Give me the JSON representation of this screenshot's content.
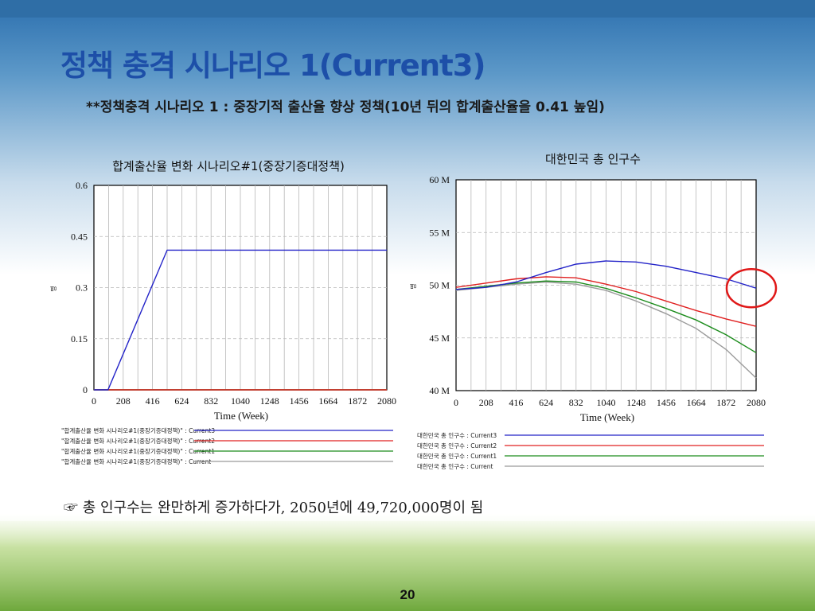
{
  "slide": {
    "title": "정책 충격 시나리오 1(Current3)",
    "subtitle": "**정책충격 시나리오 1 : 중장기적 출산율 향상 정책(10년 뒤의 합계출산율을  0.41 높임)",
    "conclusion": "☞ 총 인구수는 완만하게 증가하다가, 2050년에 49,720,000명이 됨",
    "page_number": "20"
  },
  "colors": {
    "title": "#1d4fa8",
    "current3": "#2323c8",
    "current2": "#e02020",
    "current1": "#1c8c1c",
    "current": "#9a9a9a",
    "highlight": "#e01818"
  },
  "chart_data": [
    {
      "type": "line",
      "title": "합계출산율 변화 시나리오#1(중장기증대정책)",
      "xlabel": "Time (Week)",
      "ylabel": "",
      "unit_label": "명",
      "x_ticks": [
        "0",
        "208",
        "416",
        "624",
        "832",
        "1040",
        "1248",
        "1456",
        "1664",
        "1872",
        "2080"
      ],
      "y_ticks": [
        "0.6",
        "0.45",
        "0.3",
        "0.15",
        "0"
      ],
      "xlim": [
        0,
        2080
      ],
      "ylim": [
        0,
        0.6
      ],
      "grid": true,
      "legend_position": "bottom",
      "series": [
        {
          "name": "\"합계출산율 변화 시나리오#1(중장기증대정책)\" : Current3",
          "color": "#2323c8",
          "points": [
            [
              0,
              0
            ],
            [
              100,
              0
            ],
            [
              520,
              0.41
            ],
            [
              2080,
              0.41
            ]
          ]
        },
        {
          "name": "\"합계출산율 변화 시나리오#1(중장기증대정책)\" : Current2",
          "color": "#e02020",
          "points": [
            [
              0,
              0
            ],
            [
              2080,
              0
            ]
          ]
        },
        {
          "name": "\"합계출산율 변화 시나리오#1(중장기증대정책)\" : Current1",
          "color": "#1c8c1c",
          "points": [
            [
              0,
              0
            ],
            [
              2080,
              0
            ]
          ]
        },
        {
          "name": "\"합계출산율 변화 시나리오#1(중장기증대정책)\" : Current",
          "color": "#9a9a9a",
          "points": [
            [
              0,
              0
            ],
            [
              2080,
              0
            ]
          ]
        }
      ]
    },
    {
      "type": "line",
      "title": "대한민국 총 인구수",
      "xlabel": "Time (Week)",
      "ylabel": "",
      "unit_label": "명",
      "x_ticks": [
        "0",
        "208",
        "416",
        "624",
        "832",
        "1040",
        "1248",
        "1456",
        "1664",
        "1872",
        "2080"
      ],
      "y_ticks": [
        "60 M",
        "55 M",
        "50 M",
        "45 M",
        "40 M"
      ],
      "xlim": [
        0,
        2080
      ],
      "ylim": [
        40,
        60
      ],
      "grid": true,
      "legend_position": "bottom",
      "highlight": {
        "x": 2080,
        "y": 49.72
      },
      "series": [
        {
          "name": "대한민국 총 인구수 : Current3",
          "color": "#2323c8",
          "points": [
            [
              0,
              49.6
            ],
            [
              208,
              49.8
            ],
            [
              416,
              50.3
            ],
            [
              624,
              51.2
            ],
            [
              832,
              52
            ],
            [
              1040,
              52.3
            ],
            [
              1248,
              52.2
            ],
            [
              1456,
              51.8
            ],
            [
              1664,
              51.2
            ],
            [
              1872,
              50.6
            ],
            [
              2080,
              49.72
            ]
          ]
        },
        {
          "name": "대한민국 총 인구수 : Current2",
          "color": "#e02020",
          "points": [
            [
              0,
              49.8
            ],
            [
              208,
              50.2
            ],
            [
              416,
              50.6
            ],
            [
              624,
              50.8
            ],
            [
              832,
              50.7
            ],
            [
              1040,
              50.1
            ],
            [
              1248,
              49.4
            ],
            [
              1456,
              48.5
            ],
            [
              1664,
              47.6
            ],
            [
              1872,
              46.8
            ],
            [
              2080,
              46.1
            ]
          ]
        },
        {
          "name": "대한민국 총 인구수 : Current1",
          "color": "#1c8c1c",
          "points": [
            [
              0,
              49.6
            ],
            [
              208,
              49.9
            ],
            [
              416,
              50.2
            ],
            [
              624,
              50.4
            ],
            [
              832,
              50.3
            ],
            [
              1040,
              49.7
            ],
            [
              1248,
              48.8
            ],
            [
              1456,
              47.8
            ],
            [
              1664,
              46.7
            ],
            [
              1872,
              45.3
            ],
            [
              2080,
              43.6
            ]
          ]
        },
        {
          "name": "대한민국 총 인구수 : Current",
          "color": "#9a9a9a",
          "points": [
            [
              0,
              49.5
            ],
            [
              208,
              49.8
            ],
            [
              416,
              50.1
            ],
            [
              624,
              50.3
            ],
            [
              832,
              50.1
            ],
            [
              1040,
              49.5
            ],
            [
              1248,
              48.5
            ],
            [
              1456,
              47.3
            ],
            [
              1664,
              45.9
            ],
            [
              1872,
              43.9
            ],
            [
              2080,
              41.2
            ]
          ]
        }
      ]
    }
  ]
}
